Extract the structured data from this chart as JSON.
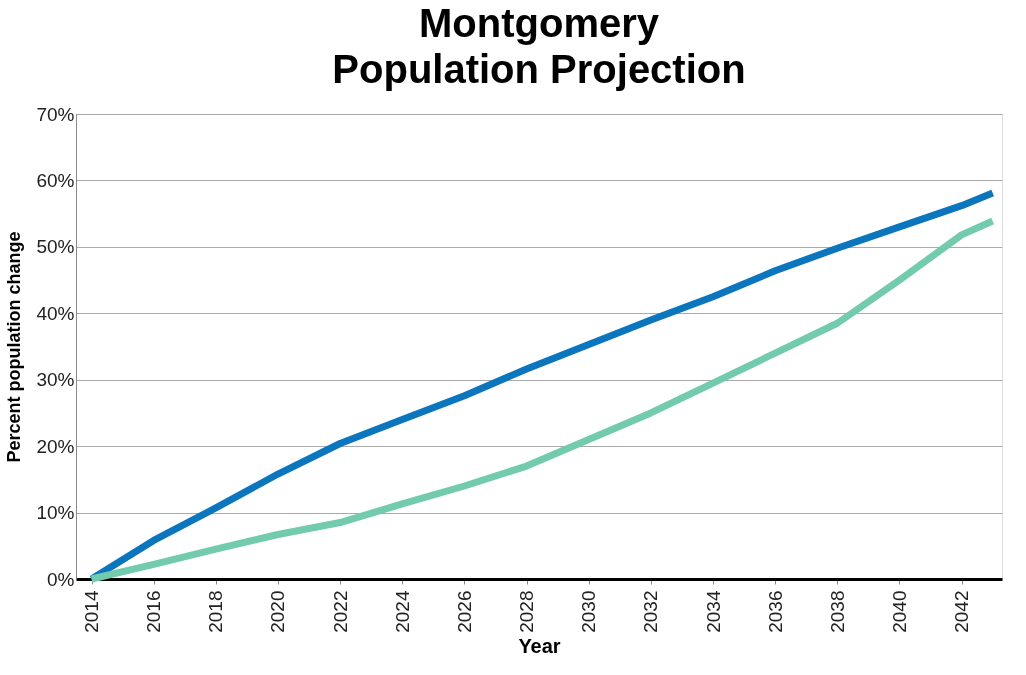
{
  "chart_data": {
    "type": "line",
    "title": [
      "Montgomery",
      "Population Projection"
    ],
    "xlabel": "Year",
    "ylabel": "Percent population change",
    "x": [
      2014,
      2016,
      2018,
      2020,
      2022,
      2024,
      2026,
      2028,
      2030,
      2032,
      2034,
      2036,
      2038,
      2040,
      2042,
      2043
    ],
    "series": [
      {
        "color": "#0b76bd",
        "values": [
          0,
          5.8,
          10.7,
          15.8,
          20.4,
          24,
          27.6,
          31.6,
          35.3,
          39,
          42.5,
          46.4,
          49.8,
          53,
          56.2,
          58.1
        ]
      },
      {
        "color": "#72cbac",
        "values": [
          0,
          2.2,
          4.5,
          6.7,
          8.5,
          11.3,
          14,
          17,
          21,
          25,
          29.5,
          34,
          38.5,
          45,
          51.8,
          53.9
        ]
      }
    ],
    "xlim": [
      2013.5,
      2043.3
    ],
    "xticks": [
      2014,
      2016,
      2018,
      2020,
      2022,
      2024,
      2026,
      2028,
      2030,
      2032,
      2034,
      2036,
      2038,
      2040,
      2042
    ],
    "ylim": [
      0,
      70
    ],
    "yticks": [
      {
        "value": 0,
        "label": "0%"
      },
      {
        "value": 10,
        "label": "10%"
      },
      {
        "value": 20,
        "label": "20%"
      },
      {
        "value": 30,
        "label": "30%"
      },
      {
        "value": 40,
        "label": "40%"
      },
      {
        "value": 50,
        "label": "50%"
      },
      {
        "value": 60,
        "label": "60%"
      },
      {
        "value": 70,
        "label": "70%"
      }
    ],
    "grid": "y",
    "legend": false,
    "marker": "none",
    "line_style": "solid"
  }
}
